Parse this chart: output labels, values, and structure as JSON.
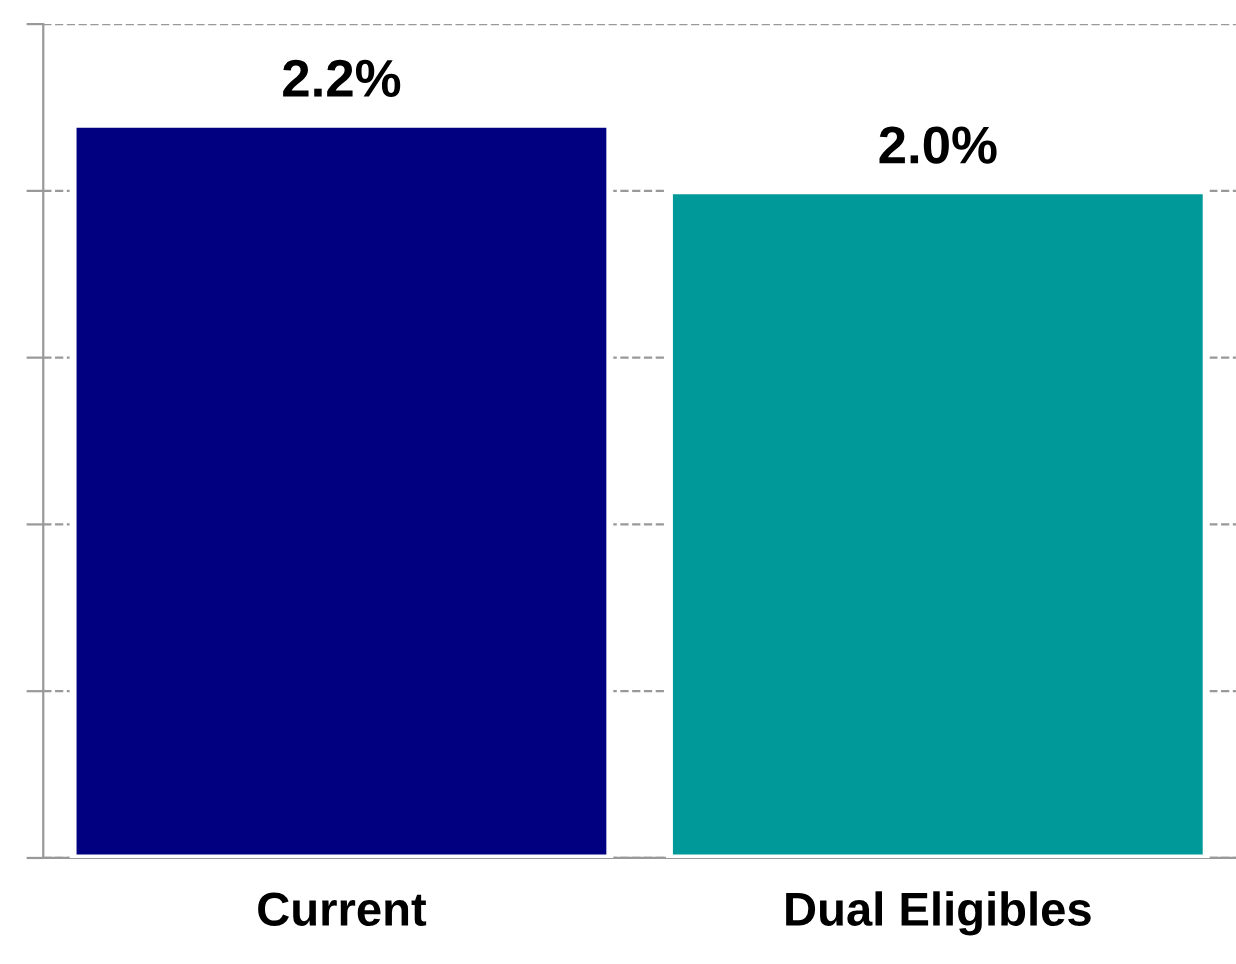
{
  "chart_data": {
    "type": "bar",
    "categories": [
      "Current",
      "Dual Eligibles"
    ],
    "values": [
      2.2,
      2.0
    ],
    "colors": [
      "#000080",
      "#009999"
    ],
    "value_labels": [
      "2.2%",
      "2.0%"
    ],
    "ylim": [
      0,
      2.5
    ],
    "yticks": [
      {
        "value": 0,
        "label": null
      },
      {
        "value": 0.5,
        "label": null
      },
      {
        "value": 1,
        "label": null
      },
      {
        "value": 1.5,
        "label": null
      },
      {
        "value": 2,
        "label": null
      },
      {
        "value": 2.5,
        "label": null
      }
    ],
    "tick_labels": "x",
    "grid": "y"
  }
}
